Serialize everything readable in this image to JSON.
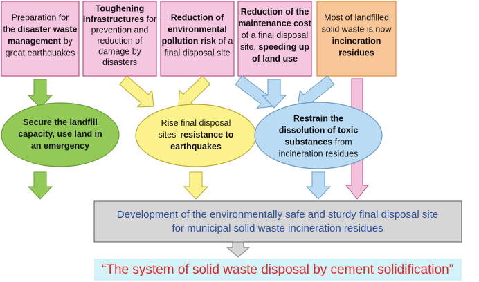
{
  "boxes": [
    {
      "lines": [
        [
          {
            "text": "Preparation for",
            "bold": false
          }
        ],
        [
          {
            "text": "the ",
            "bold": false
          },
          {
            "text": "disaster waste",
            "bold": true
          }
        ],
        [
          {
            "text": "management",
            "bold": true
          },
          {
            "text": " by",
            "bold": false
          }
        ],
        [
          {
            "text": "great earthquakes",
            "bold": false
          }
        ]
      ]
    },
    {
      "lines": [
        [
          {
            "text": "Toughening",
            "bold": true
          }
        ],
        [
          {
            "text": "infrastructures",
            "bold": true
          },
          {
            "text": " for",
            "bold": false
          }
        ],
        [
          {
            "text": "prevention and",
            "bold": false
          }
        ],
        [
          {
            "text": "reduction of",
            "bold": false
          }
        ],
        [
          {
            "text": "damage by",
            "bold": false
          }
        ],
        [
          {
            "text": "disasters",
            "bold": false
          }
        ]
      ]
    },
    {
      "lines": [
        [
          {
            "text": "Reduction of",
            "bold": true
          }
        ],
        [
          {
            "text": "environmental",
            "bold": true
          }
        ],
        [
          {
            "text": "pollution risk",
            "bold": true
          },
          {
            "text": " of a",
            "bold": false
          }
        ],
        [
          {
            "text": "final disposal site",
            "bold": false
          }
        ]
      ]
    },
    {
      "lines": [
        [
          {
            "text": "Reduction of the",
            "bold": true
          }
        ],
        [
          {
            "text": "maintenance cost",
            "bold": true
          }
        ],
        [
          {
            "text": "of a final disposal",
            "bold": false
          }
        ],
        [
          {
            "text": "site, ",
            "bold": false
          },
          {
            "text": "speeding up",
            "bold": true
          }
        ],
        [
          {
            "text": "of land use",
            "bold": true
          }
        ]
      ]
    },
    {
      "lines": [
        [
          {
            "text": "Most of landfilled",
            "bold": false
          }
        ],
        [
          {
            "text": "solid waste is now",
            "bold": false
          }
        ],
        [
          {
            "text": "incineration",
            "bold": true
          }
        ],
        [
          {
            "text": "residues",
            "bold": true
          }
        ]
      ]
    }
  ],
  "goals": [
    {
      "lines": [
        [
          {
            "text": "Secure the landfill",
            "bold": true
          }
        ],
        [
          {
            "text": "capacity, use land in",
            "bold": true
          }
        ],
        [
          {
            "text": "an emergency",
            "bold": true
          }
        ]
      ]
    },
    {
      "lines": [
        [
          {
            "text": "Rise final disposal",
            "bold": false
          }
        ],
        [
          {
            "text": "sites' ",
            "bold": false
          },
          {
            "text": "resistance to",
            "bold": true
          }
        ],
        [
          {
            "text": "earthquakes",
            "bold": true
          }
        ]
      ]
    },
    {
      "lines": [
        [
          {
            "text": "Restrain the",
            "bold": true
          }
        ],
        [
          {
            "text": "dissolution of toxic",
            "bold": true
          }
        ],
        [
          {
            "text": "substances",
            "bold": true
          },
          {
            "text": " from",
            "bold": false
          }
        ],
        [
          {
            "text": "incineration residues",
            "bold": false
          }
        ]
      ]
    }
  ],
  "development": [
    "Development of the environmentally safe and sturdy final disposal site",
    "for municipal solid waste incineration residues"
  ],
  "system": "“The system of solid waste disposal by cement solidification”"
}
